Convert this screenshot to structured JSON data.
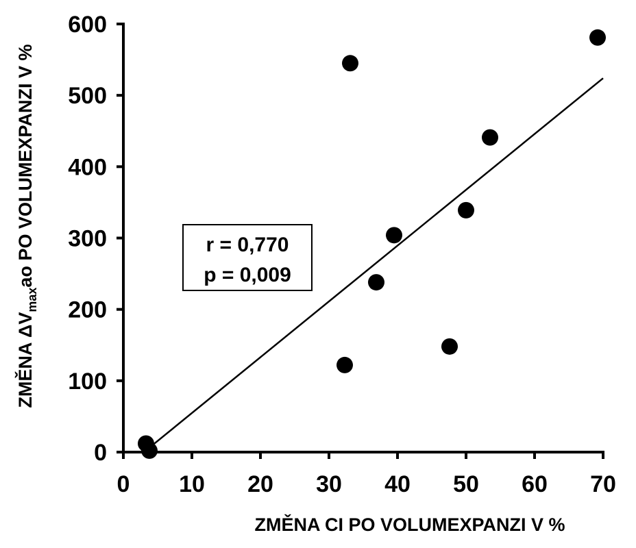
{
  "chart_data": {
    "type": "scatter",
    "title": "",
    "xlabel": "ZMĚNA CI PO VOLUMEXPANZI  V %",
    "ylabel": {
      "prefix": "ZMĚNA ΔV",
      "subscript": "max",
      "suffix": "ao PO VOLUMEXPANZI V %"
    },
    "xlim": [
      0,
      70
    ],
    "ylim": [
      0,
      600
    ],
    "x_ticks": [
      "0",
      "10",
      "20",
      "30",
      "40",
      "50",
      "60",
      "70"
    ],
    "y_ticks": [
      "0",
      "100",
      "200",
      "300",
      "400",
      "500",
      "600"
    ],
    "grid": false,
    "points": [
      {
        "x": 3.3,
        "y": 12
      },
      {
        "x": 3.8,
        "y": 2
      },
      {
        "x": 32.3,
        "y": 122
      },
      {
        "x": 33.1,
        "y": 545
      },
      {
        "x": 36.9,
        "y": 238
      },
      {
        "x": 39.5,
        "y": 304
      },
      {
        "x": 47.6,
        "y": 148
      },
      {
        "x": 50.0,
        "y": 339
      },
      {
        "x": 53.5,
        "y": 441
      },
      {
        "x": 69.2,
        "y": 581
      }
    ],
    "trendline": {
      "x": [
        3,
        70
      ],
      "y": [
        0,
        524
      ]
    },
    "annotation": {
      "line1": "r = 0,770",
      "line2": "p = 0,009"
    },
    "colors": {
      "marker": "#000000",
      "axis": "#000000",
      "background": "#ffffff"
    }
  }
}
